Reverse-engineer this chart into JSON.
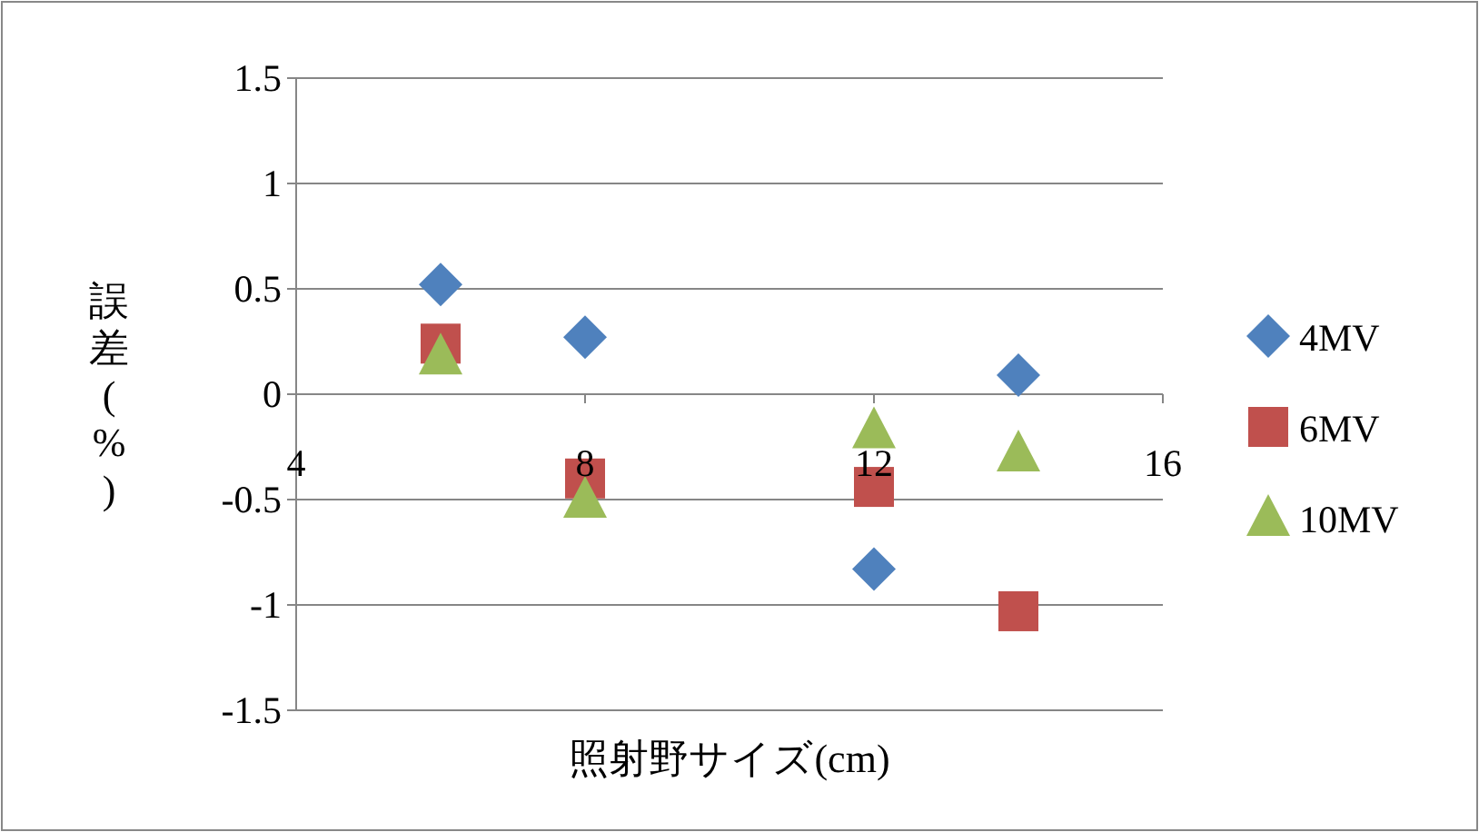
{
  "chart_data": {
    "type": "scatter",
    "xlabel": "照射野サイズ(cm)",
    "ylabel": "誤差(%)",
    "x": [
      6,
      8,
      12,
      14
    ],
    "series": [
      {
        "name": "4MV",
        "color": "#4f81bd",
        "marker": "diamond",
        "values": [
          0.52,
          0.27,
          -0.83,
          0.09
        ]
      },
      {
        "name": "6MV",
        "color": "#c0504d",
        "marker": "square",
        "values": [
          0.24,
          -0.4,
          -0.44,
          -1.03
        ]
      },
      {
        "name": "10MV",
        "color": "#9bbb59",
        "marker": "triangle",
        "values": [
          0.18,
          -0.5,
          -0.17,
          -0.28
        ]
      }
    ],
    "xlim": [
      4,
      16
    ],
    "xticks": [
      4,
      8,
      12,
      16
    ],
    "ylim": [
      -1.5,
      1.5
    ],
    "yticks": [
      -1.5,
      -1,
      -0.5,
      0,
      0.5,
      1,
      1.5
    ],
    "grid": "y",
    "legend": "right"
  }
}
